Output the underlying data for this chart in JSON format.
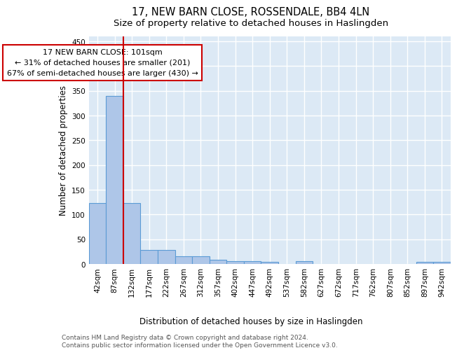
{
  "title": "17, NEW BARN CLOSE, ROSSENDALE, BB4 4LN",
  "subtitle": "Size of property relative to detached houses in Haslingden",
  "xlabel": "Distribution of detached houses by size in Haslingden",
  "ylabel": "Number of detached properties",
  "bar_labels": [
    "42sqm",
    "87sqm",
    "132sqm",
    "177sqm",
    "222sqm",
    "267sqm",
    "312sqm",
    "357sqm",
    "402sqm",
    "447sqm",
    "492sqm",
    "537sqm",
    "582sqm",
    "627sqm",
    "672sqm",
    "717sqm",
    "762sqm",
    "807sqm",
    "852sqm",
    "897sqm",
    "942sqm"
  ],
  "bar_heights": [
    123,
    340,
    123,
    29,
    29,
    16,
    16,
    8,
    6,
    6,
    4,
    0,
    5,
    0,
    0,
    0,
    0,
    0,
    0,
    4,
    4
  ],
  "bar_color": "#aec6e8",
  "bar_edge_color": "#5b9bd5",
  "background_color": "#dce9f5",
  "grid_color": "#ffffff",
  "redline_x": 1.5,
  "annotation_text": "17 NEW BARN CLOSE: 101sqm\n← 31% of detached houses are smaller (201)\n67% of semi-detached houses are larger (430) →",
  "annotation_box_color": "#ffffff",
  "annotation_box_edge": "#cc0000",
  "redline_color": "#cc0000",
  "ylim": [
    0,
    460
  ],
  "yticks": [
    0,
    50,
    100,
    150,
    200,
    250,
    300,
    350,
    400,
    450
  ],
  "footer": "Contains HM Land Registry data © Crown copyright and database right 2024.\nContains public sector information licensed under the Open Government Licence v3.0.",
  "title_fontsize": 10.5,
  "subtitle_fontsize": 9.5,
  "axis_label_fontsize": 8.5,
  "tick_fontsize": 7.5,
  "annotation_fontsize": 8,
  "footer_fontsize": 6.5
}
